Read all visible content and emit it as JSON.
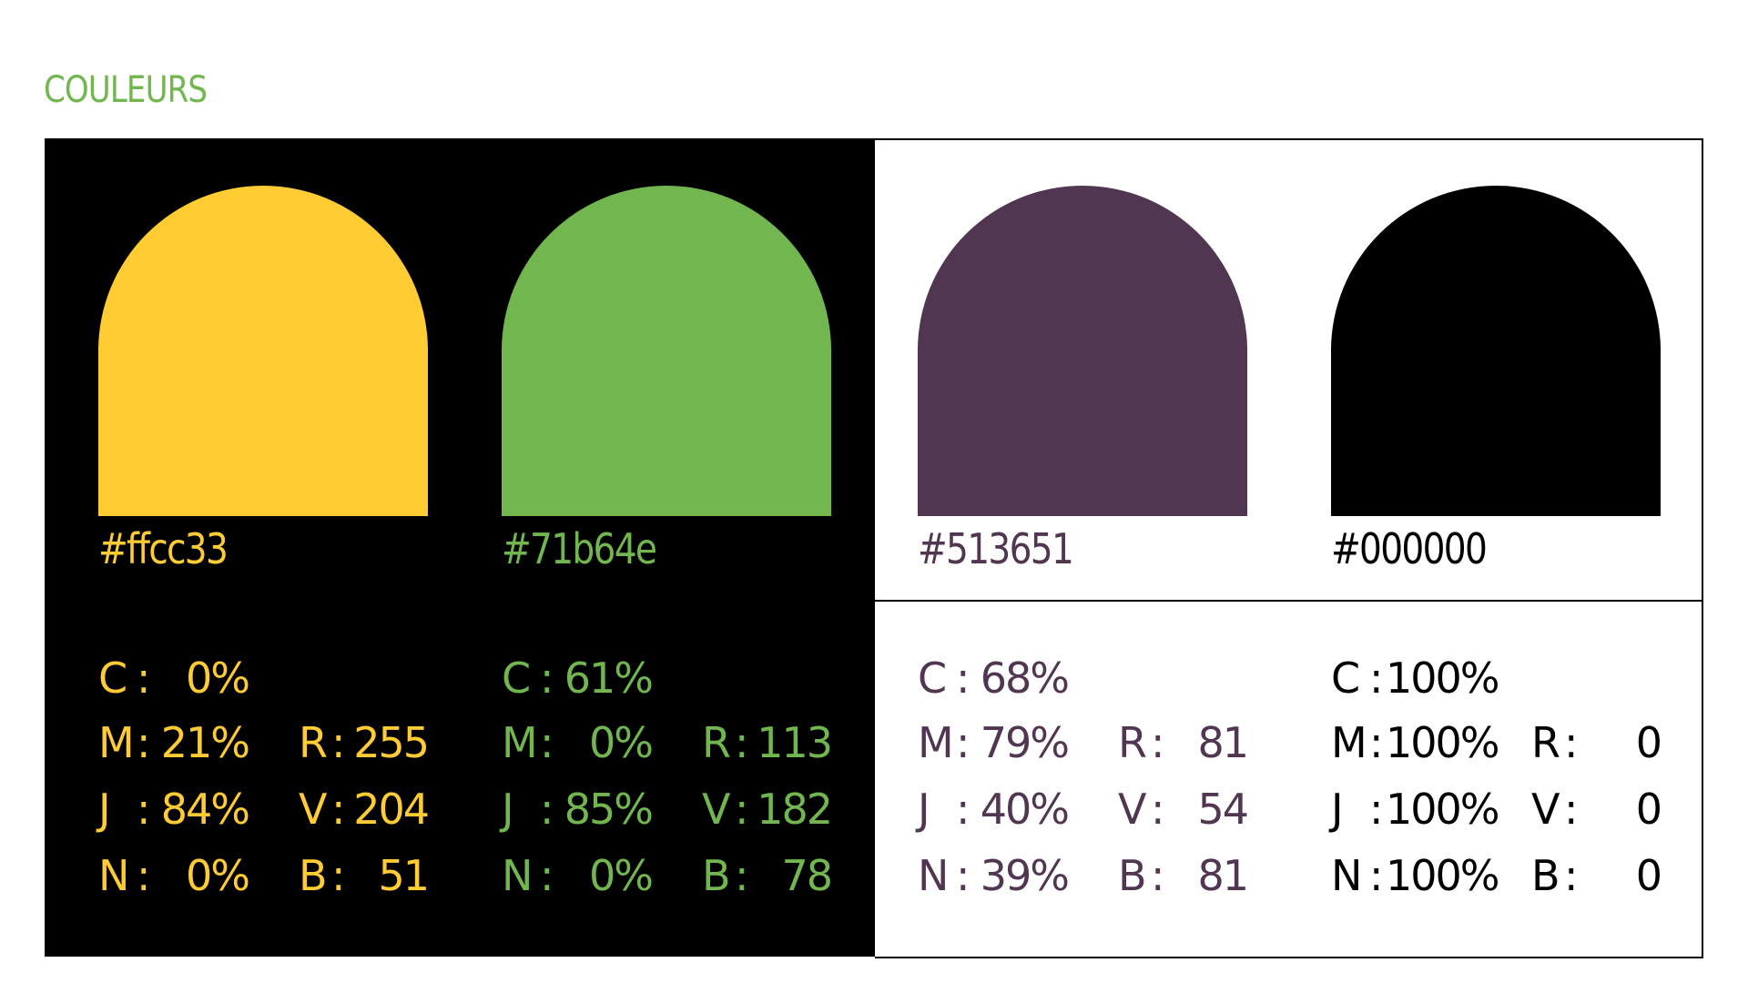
{
  "header": {
    "title": "COULEURS"
  },
  "separator": ":",
  "colors": [
    {
      "hex": "#ffcc33",
      "cmyk": [
        {
          "label": "C",
          "value": "0%"
        },
        {
          "label": "M",
          "value": "21%"
        },
        {
          "label": "J",
          "value": "84%"
        },
        {
          "label": "N",
          "value": "0%"
        }
      ],
      "rgb": [
        {
          "label": "R",
          "value": "255"
        },
        {
          "label": "V",
          "value": "204"
        },
        {
          "label": "B",
          "value": "51"
        }
      ]
    },
    {
      "hex": "#71b64e",
      "cmyk": [
        {
          "label": "C",
          "value": "61%"
        },
        {
          "label": "M",
          "value": "0%"
        },
        {
          "label": "J",
          "value": "85%"
        },
        {
          "label": "N",
          "value": "0%"
        }
      ],
      "rgb": [
        {
          "label": "R",
          "value": "113"
        },
        {
          "label": "V",
          "value": "182"
        },
        {
          "label": "B",
          "value": "78"
        }
      ]
    },
    {
      "hex": "#513651",
      "cmyk": [
        {
          "label": "C",
          "value": "68%"
        },
        {
          "label": "M",
          "value": "79%"
        },
        {
          "label": "J",
          "value": "40%"
        },
        {
          "label": "N",
          "value": "39%"
        }
      ],
      "rgb": [
        {
          "label": "R",
          "value": "81"
        },
        {
          "label": "V",
          "value": "54"
        },
        {
          "label": "B",
          "value": "81"
        }
      ]
    },
    {
      "hex": "#000000",
      "cmyk": [
        {
          "label": "C",
          "value": "100%"
        },
        {
          "label": "M",
          "value": "100%"
        },
        {
          "label": "J",
          "value": "100%"
        },
        {
          "label": "N",
          "value": "100%"
        }
      ],
      "rgb": [
        {
          "label": "R",
          "value": "0"
        },
        {
          "label": "V",
          "value": "0"
        },
        {
          "label": "B",
          "value": "0"
        }
      ]
    }
  ]
}
